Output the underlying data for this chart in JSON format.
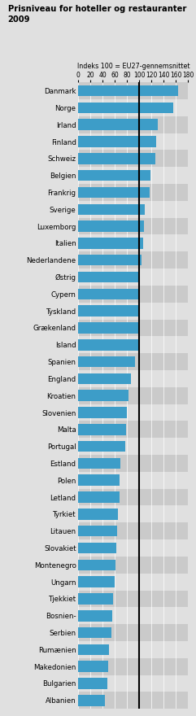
{
  "title": "Prisniveau for hoteller og restauranter\n2009",
  "subtitle": "Indeks 100 = EU27-gennemsnittet",
  "xlabel_ticks": [
    0,
    20,
    40,
    60,
    80,
    100,
    120,
    140,
    160,
    180
  ],
  "xmin": 0,
  "xmax": 180,
  "reference_line": 100,
  "bar_color": "#3d9dc8",
  "bg_color_light": "#e0e0e0",
  "bg_color_dark": "#cacaca",
  "fig_bg": "#e0e0e0",
  "countries": [
    "Danmark",
    "Norge",
    "Irland",
    "Finland",
    "Schweiz",
    "Belgien",
    "Frankrig",
    "Sverige",
    "Luxemborg",
    "Italien",
    "Nederlandene",
    "Østrig",
    "Cypern",
    "Tyskland",
    "Grækenland",
    "Island",
    "Spanien",
    "England",
    "Kroatien",
    "Slovenien",
    "Malta",
    "Portugal",
    "Estland",
    "Polen",
    "Letland",
    "Tyrkiet",
    "Litauen",
    "Slovakiet",
    "Montenegro",
    "Ungarn",
    "Tjekkiet",
    "Bosnien-",
    "Serbien",
    "Rumænien",
    "Makedonien",
    "Bulgarien",
    "Albanien"
  ],
  "values": [
    163,
    155,
    130,
    128,
    126,
    118,
    117,
    109,
    107,
    106,
    104,
    101,
    100,
    99,
    99,
    99,
    93,
    86,
    82,
    79,
    78,
    77,
    69,
    68,
    67,
    65,
    64,
    62,
    61,
    60,
    57,
    55,
    54,
    50,
    49,
    47,
    44
  ]
}
